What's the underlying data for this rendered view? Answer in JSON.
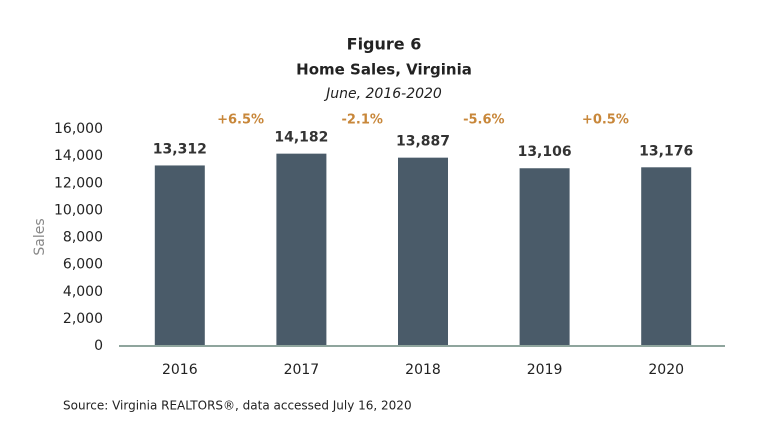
{
  "chart_data": {
    "type": "bar",
    "title": "Figure 6",
    "subtitle": "Home Sales, Virginia",
    "period": "June, 2016-2020",
    "y_label": "Sales",
    "categories": [
      "2016",
      "2017",
      "2018",
      "2019",
      "2020"
    ],
    "values": [
      13312,
      14182,
      13887,
      13106,
      13176
    ],
    "value_labels": [
      "13,312",
      "14,182",
      "13,887",
      "13,106",
      "13,176"
    ],
    "color": "#4a5b69",
    "ylim": [
      0,
      16000
    ],
    "yticks": [
      0,
      {
        "value": 2000,
        "label": "2,000"
      },
      {
        "value": 4000,
        "label": "4,000"
      },
      {
        "value": 6000,
        "label": "6,000"
      },
      {
        "value": 8000,
        "label": "8,000"
      },
      {
        "value": 10000,
        "label": "10,000"
      },
      {
        "value": 12000,
        "label": "12,000"
      },
      {
        "value": 14000,
        "label": "14,000"
      },
      {
        "value": 16000,
        "label": "16,000"
      }
    ],
    "grid": false,
    "annotations": [
      "+6.5%",
      "-2.1%",
      "-5.6%",
      "+0.5%"
    ],
    "source": "Source: Virginia REALTORS®, data accessed July 16, 2020"
  }
}
